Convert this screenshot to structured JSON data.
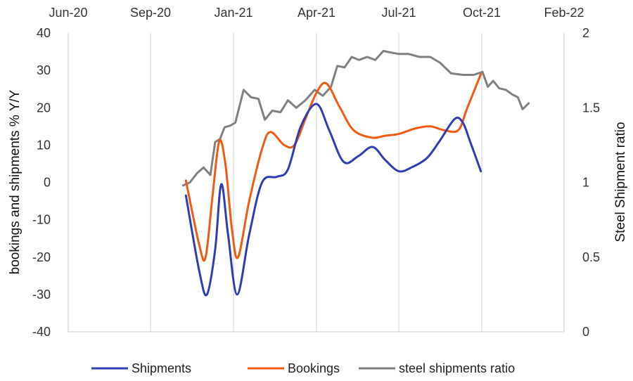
{
  "chart_data": {
    "type": "line",
    "x_axis": {
      "tick_labels": [
        "Jun-20",
        "Sep-20",
        "Jan-21",
        "Apr-21",
        "Jul-21",
        "Oct-21",
        "Feb-22"
      ],
      "position": "top",
      "gridlines": "vertical"
    },
    "y_left": {
      "label": "bookings and shipments % Y/Y",
      "range": [
        -40,
        40
      ],
      "ticks": [
        40,
        30,
        20,
        10,
        0,
        -10,
        -20,
        -30,
        -40
      ]
    },
    "y_right": {
      "label": "Steel Shipment ratio",
      "range": [
        0,
        2
      ],
      "ticks": [
        2,
        1.5,
        1,
        0.5,
        0
      ]
    },
    "series": [
      {
        "name": "Shipments",
        "axis": "left",
        "color": "#2f3db5",
        "points": [
          [
            "2020-10-23",
            -3.5
          ],
          [
            "2020-11-12",
            -24
          ],
          [
            "2020-11-23",
            -30
          ],
          [
            "2020-12-05",
            -18
          ],
          [
            "2020-12-14",
            -0.5
          ],
          [
            "2020-12-24",
            -14
          ],
          [
            "2021-01-05",
            -30
          ],
          [
            "2021-01-18",
            -14
          ],
          [
            "2021-02-01",
            0
          ],
          [
            "2021-02-17",
            1.5
          ],
          [
            "2021-03-01",
            3.5
          ],
          [
            "2021-03-15",
            15
          ],
          [
            "2021-04-01",
            21
          ],
          [
            "2021-04-15",
            14
          ],
          [
            "2021-05-01",
            5.5
          ],
          [
            "2021-05-17",
            7
          ],
          [
            "2021-06-02",
            9.5
          ],
          [
            "2021-06-16",
            6
          ],
          [
            "2021-07-01",
            3
          ],
          [
            "2021-07-15",
            4
          ],
          [
            "2021-08-01",
            6.5
          ],
          [
            "2021-08-15",
            11
          ],
          [
            "2021-09-01",
            17
          ],
          [
            "2021-09-10",
            16
          ],
          [
            "2021-09-18",
            11
          ],
          [
            "2021-09-30",
            3
          ]
        ]
      },
      {
        "name": "Bookings",
        "axis": "left",
        "color": "#f25a12",
        "points": [
          [
            "2020-10-23",
            0.5
          ],
          [
            "2020-11-12",
            -17
          ],
          [
            "2020-11-21",
            -20
          ],
          [
            "2020-12-01",
            -4
          ],
          [
            "2020-12-11",
            11
          ],
          [
            "2020-12-20",
            5
          ],
          [
            "2020-12-30",
            -13
          ],
          [
            "2021-01-06",
            -20
          ],
          [
            "2021-01-18",
            -5
          ],
          [
            "2021-02-01",
            9
          ],
          [
            "2021-02-10",
            13.5
          ],
          [
            "2021-02-25",
            10
          ],
          [
            "2021-03-08",
            10
          ],
          [
            "2021-03-20",
            17
          ],
          [
            "2021-04-01",
            24
          ],
          [
            "2021-04-12",
            26.5
          ],
          [
            "2021-04-27",
            20
          ],
          [
            "2021-05-12",
            14
          ],
          [
            "2021-06-01",
            12
          ],
          [
            "2021-06-16",
            12.5
          ],
          [
            "2021-07-01",
            13
          ],
          [
            "2021-07-20",
            14.5
          ],
          [
            "2021-08-05",
            15
          ],
          [
            "2021-08-20",
            14
          ],
          [
            "2021-09-05",
            14
          ],
          [
            "2021-09-15",
            20
          ],
          [
            "2021-09-30",
            29
          ]
        ]
      },
      {
        "name": "steel shipments ratio",
        "axis": "right",
        "color": "#808080",
        "points": [
          [
            "2020-10-19",
            0.98
          ],
          [
            "2020-10-29",
            1.0
          ],
          [
            "2020-11-08",
            1.06
          ],
          [
            "2020-11-18",
            1.1
          ],
          [
            "2020-11-28",
            1.05
          ],
          [
            "2020-12-05",
            1.27
          ],
          [
            "2020-12-12",
            1.29
          ],
          [
            "2020-12-19",
            1.37
          ],
          [
            "2020-12-27",
            1.38
          ],
          [
            "2021-01-03",
            1.4
          ],
          [
            "2021-01-12",
            1.62
          ],
          [
            "2021-01-20",
            1.57
          ],
          [
            "2021-01-28",
            1.56
          ],
          [
            "2021-02-04",
            1.42
          ],
          [
            "2021-02-12",
            1.48
          ],
          [
            "2021-02-21",
            1.47
          ],
          [
            "2021-03-01",
            1.55
          ],
          [
            "2021-03-10",
            1.5
          ],
          [
            "2021-03-20",
            1.55
          ],
          [
            "2021-03-30",
            1.62
          ],
          [
            "2021-04-08",
            1.58
          ],
          [
            "2021-04-17",
            1.64
          ],
          [
            "2021-04-24",
            1.78
          ],
          [
            "2021-05-02",
            1.77
          ],
          [
            "2021-05-10",
            1.84
          ],
          [
            "2021-05-18",
            1.82
          ],
          [
            "2021-05-27",
            1.84
          ],
          [
            "2021-06-05",
            1.82
          ],
          [
            "2021-06-14",
            1.88
          ],
          [
            "2021-06-22",
            1.87
          ],
          [
            "2021-07-01",
            1.86
          ],
          [
            "2021-07-12",
            1.86
          ],
          [
            "2021-07-24",
            1.84
          ],
          [
            "2021-08-05",
            1.84
          ],
          [
            "2021-08-16",
            1.8
          ],
          [
            "2021-08-28",
            1.73
          ],
          [
            "2021-09-10",
            1.72
          ],
          [
            "2021-09-22",
            1.72
          ],
          [
            "2021-10-02",
            1.74
          ],
          [
            "2021-10-10",
            1.64
          ],
          [
            "2021-10-18",
            1.68
          ],
          [
            "2021-10-27",
            1.63
          ],
          [
            "2021-11-06",
            1.62
          ],
          [
            "2021-11-15",
            1.59
          ],
          [
            "2021-11-24",
            1.57
          ],
          [
            "2021-12-01",
            1.49
          ],
          [
            "2021-12-10",
            1.53
          ]
        ]
      }
    ],
    "legend": {
      "placement": "bottom"
    },
    "grid": "vertical only"
  }
}
